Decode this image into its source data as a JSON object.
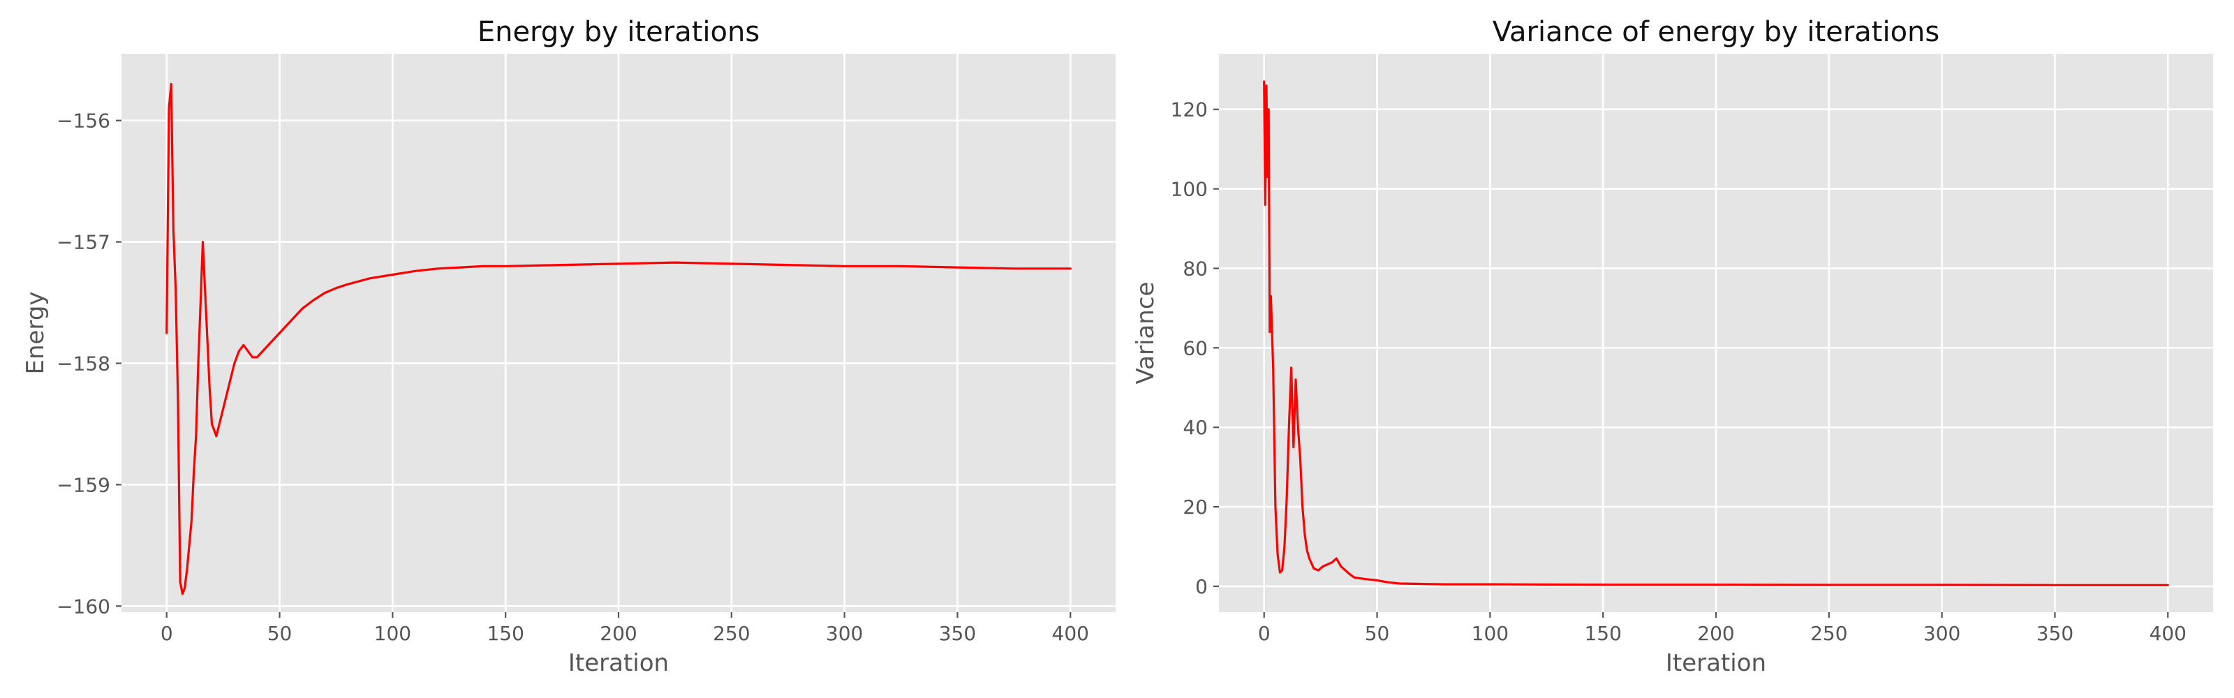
{
  "chart_data": [
    {
      "type": "line",
      "title": "Energy by iterations",
      "xlabel": "Iteration",
      "ylabel": "Energy",
      "xlim": [
        -20,
        420
      ],
      "ylim": [
        -160.05,
        -155.45
      ],
      "xticks": [
        0,
        50,
        100,
        150,
        200,
        250,
        300,
        350,
        400
      ],
      "yticks": [
        -160,
        -159,
        -158,
        -157,
        -156
      ],
      "ytick_labels": [
        "−160",
        "−159",
        "−158",
        "−157",
        "−156"
      ],
      "grid": true,
      "series": [
        {
          "color": "#ff0000",
          "x": [
            0,
            1,
            2,
            3,
            4,
            5,
            6,
            7,
            8,
            9,
            10,
            11,
            12,
            13,
            14,
            15,
            16,
            17,
            18,
            19,
            20,
            22,
            24,
            26,
            28,
            30,
            32,
            34,
            36,
            38,
            40,
            45,
            50,
            55,
            60,
            65,
            70,
            75,
            80,
            90,
            100,
            110,
            120,
            130,
            140,
            150,
            175,
            200,
            225,
            250,
            275,
            300,
            325,
            350,
            375,
            400
          ],
          "y": [
            -157.75,
            -155.9,
            -155.7,
            -156.9,
            -157.4,
            -158.3,
            -159.8,
            -159.9,
            -159.85,
            -159.7,
            -159.5,
            -159.3,
            -158.9,
            -158.6,
            -158.0,
            -157.5,
            -157.0,
            -157.4,
            -157.8,
            -158.2,
            -158.5,
            -158.6,
            -158.45,
            -158.3,
            -158.15,
            -158.0,
            -157.9,
            -157.85,
            -157.9,
            -157.95,
            -157.95,
            -157.85,
            -157.75,
            -157.65,
            -157.55,
            -157.48,
            -157.42,
            -157.38,
            -157.35,
            -157.3,
            -157.27,
            -157.24,
            -157.22,
            -157.21,
            -157.2,
            -157.2,
            -157.19,
            -157.18,
            -157.17,
            -157.18,
            -157.19,
            -157.2,
            -157.2,
            -157.21,
            -157.22,
            -157.22
          ]
        }
      ]
    },
    {
      "type": "line",
      "title": "Variance of energy by iterations",
      "xlabel": "Iteration",
      "ylabel": "Variance",
      "xlim": [
        -20,
        420
      ],
      "ylim": [
        -6.5,
        134
      ],
      "xticks": [
        0,
        50,
        100,
        150,
        200,
        250,
        300,
        350,
        400
      ],
      "yticks": [
        0,
        20,
        40,
        60,
        80,
        100,
        120
      ],
      "ytick_labels": [
        "0",
        "20",
        "40",
        "60",
        "80",
        "100",
        "120"
      ],
      "grid": true,
      "series": [
        {
          "color": "#ff0000",
          "x": [
            0,
            0.5,
            1,
            1.5,
            2,
            2.5,
            3,
            4,
            5,
            6,
            7,
            8,
            9,
            10,
            11,
            12,
            13,
            14,
            15,
            16,
            17,
            18,
            19,
            20,
            22,
            24,
            26,
            28,
            30,
            32,
            34,
            36,
            38,
            40,
            45,
            50,
            55,
            60,
            70,
            80,
            100,
            150,
            200,
            250,
            300,
            350,
            400
          ],
          "y": [
            127,
            96,
            126,
            103,
            120,
            64,
            73,
            55,
            20,
            8,
            3.5,
            4,
            10,
            22,
            40,
            55,
            35,
            52,
            40,
            32,
            20,
            13,
            9,
            7,
            4.5,
            4,
            5,
            5.5,
            6,
            7,
            5,
            4,
            3,
            2.2,
            1.8,
            1.5,
            1.0,
            0.7,
            0.6,
            0.5,
            0.5,
            0.4,
            0.4,
            0.35,
            0.35,
            0.3,
            0.3
          ]
        }
      ]
    }
  ]
}
